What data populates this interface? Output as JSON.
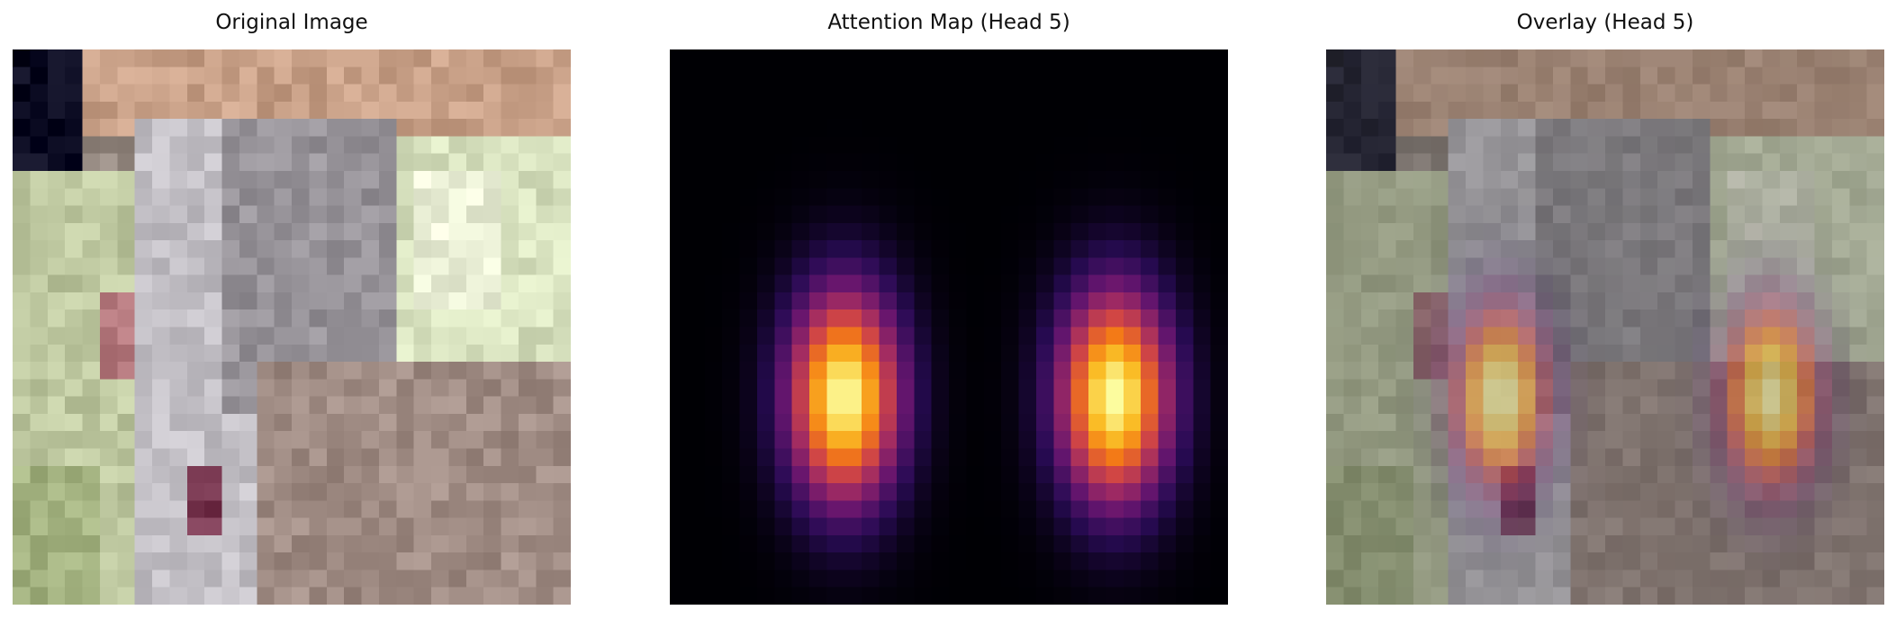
{
  "panels": [
    {
      "title": "Original Image"
    },
    {
      "title": "Attention Map (Head 5)"
    },
    {
      "title": "Overlay (Head 5)"
    }
  ],
  "colors": {
    "background": "#ffffff",
    "attention_background": "#000004",
    "colormap": "inferno"
  }
}
